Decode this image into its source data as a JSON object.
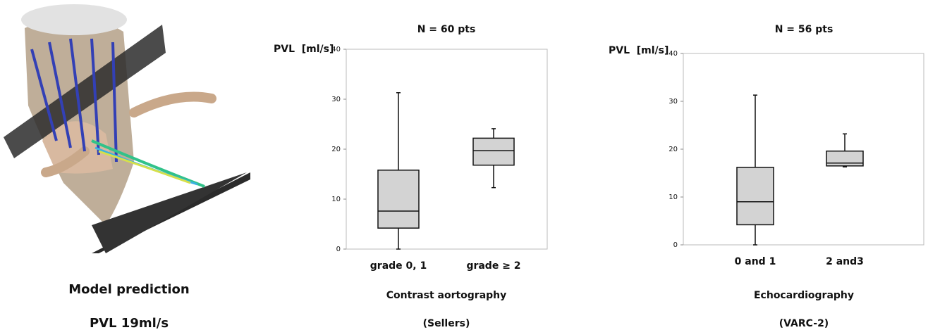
{
  "model": {
    "caption": "Model prediction",
    "result": "PVL 19ml/s"
  },
  "chart_data": [
    {
      "type": "box",
      "title": "N = 60 pts",
      "ylabel": "PVL  [ml/s]",
      "xlabel": [
        "Contrast aortography",
        "(Sellers)"
      ],
      "categories": [
        "grade 0, 1",
        "grade ≥ 2"
      ],
      "min": [
        0,
        12.3
      ],
      "q1": [
        4.2,
        16.8
      ],
      "median": [
        7.6,
        19.7
      ],
      "q3": [
        15.8,
        22.2
      ],
      "max": [
        31.3,
        24.1
      ],
      "color": "#d3d3d3",
      "ylim": [
        0,
        40
      ],
      "yticks": [
        0,
        10,
        20,
        30,
        40
      ]
    },
    {
      "type": "box",
      "title": "N = 56 pts",
      "ylabel": "PVL  [ml/s]",
      "xlabel": [
        "Echocardiography",
        "(VARC-2)"
      ],
      "categories": [
        "0 and 1",
        "2 and3"
      ],
      "min": [
        0,
        16.3
      ],
      "q1": [
        4.2,
        16.5
      ],
      "median": [
        9,
        17.1
      ],
      "q3": [
        16.2,
        19.6
      ],
      "max": [
        31.3,
        23.2
      ],
      "color": "#d3d3d3",
      "ylim": [
        0,
        40
      ],
      "yticks": [
        0,
        10,
        20,
        30,
        40
      ]
    }
  ]
}
